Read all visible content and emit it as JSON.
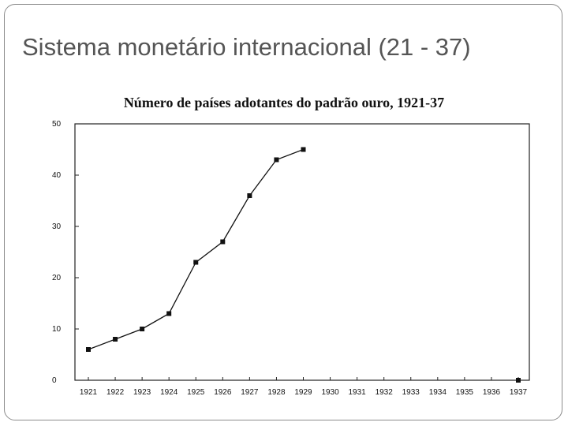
{
  "slide": {
    "title": "Sistema monetário internacional (21 - 37)"
  },
  "chart_data": {
    "type": "line",
    "title": "Número de países adotantes do padrão ouro, 1921-37",
    "xlabel": "",
    "ylabel": "",
    "x": [
      "1921",
      "1922",
      "1923",
      "1924",
      "1925",
      "1926",
      "1927",
      "1928",
      "1929",
      "1930",
      "1931",
      "1932",
      "1933",
      "1934",
      "1935",
      "1936",
      "1937"
    ],
    "series": [
      {
        "values": [
          6,
          8,
          10,
          13,
          23,
          27,
          36,
          43,
          45,
          null,
          null,
          null,
          null,
          null,
          null,
          null,
          0
        ]
      }
    ],
    "ylim": [
      0,
      50
    ],
    "yticks": [
      "0",
      "10",
      "20",
      "30",
      "40",
      "50"
    ],
    "grid": false,
    "legend": "none"
  }
}
